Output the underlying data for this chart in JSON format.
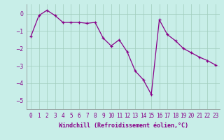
{
  "x": [
    0,
    1,
    2,
    3,
    4,
    5,
    6,
    7,
    8,
    9,
    10,
    11,
    12,
    13,
    14,
    15,
    16,
    17,
    18,
    19,
    20,
    21,
    22,
    23
  ],
  "y": [
    -1.3,
    -0.1,
    0.2,
    -0.1,
    -0.5,
    -0.5,
    -0.5,
    -0.55,
    -0.5,
    -1.4,
    -1.85,
    -1.5,
    -2.2,
    -3.3,
    -3.8,
    -4.65,
    -0.35,
    -1.2,
    -1.55,
    -2.0,
    -2.25,
    -2.5,
    -2.7,
    -2.95
  ],
  "line_color": "#880088",
  "marker": "+",
  "marker_color": "#880088",
  "bg_color": "#c8eee8",
  "grid_color": "#a0ccbc",
  "xlabel": "Windchill (Refroidissement éolien,°C)",
  "xlabel_fontsize": 6.0,
  "tick_fontsize": 5.5,
  "ylim": [
    -5.5,
    0.55
  ],
  "yticks": [
    0,
    -1,
    -2,
    -3,
    -4,
    -5
  ],
  "line_width": 0.9,
  "marker_size": 3.0,
  "marker_edge_width": 0.9
}
